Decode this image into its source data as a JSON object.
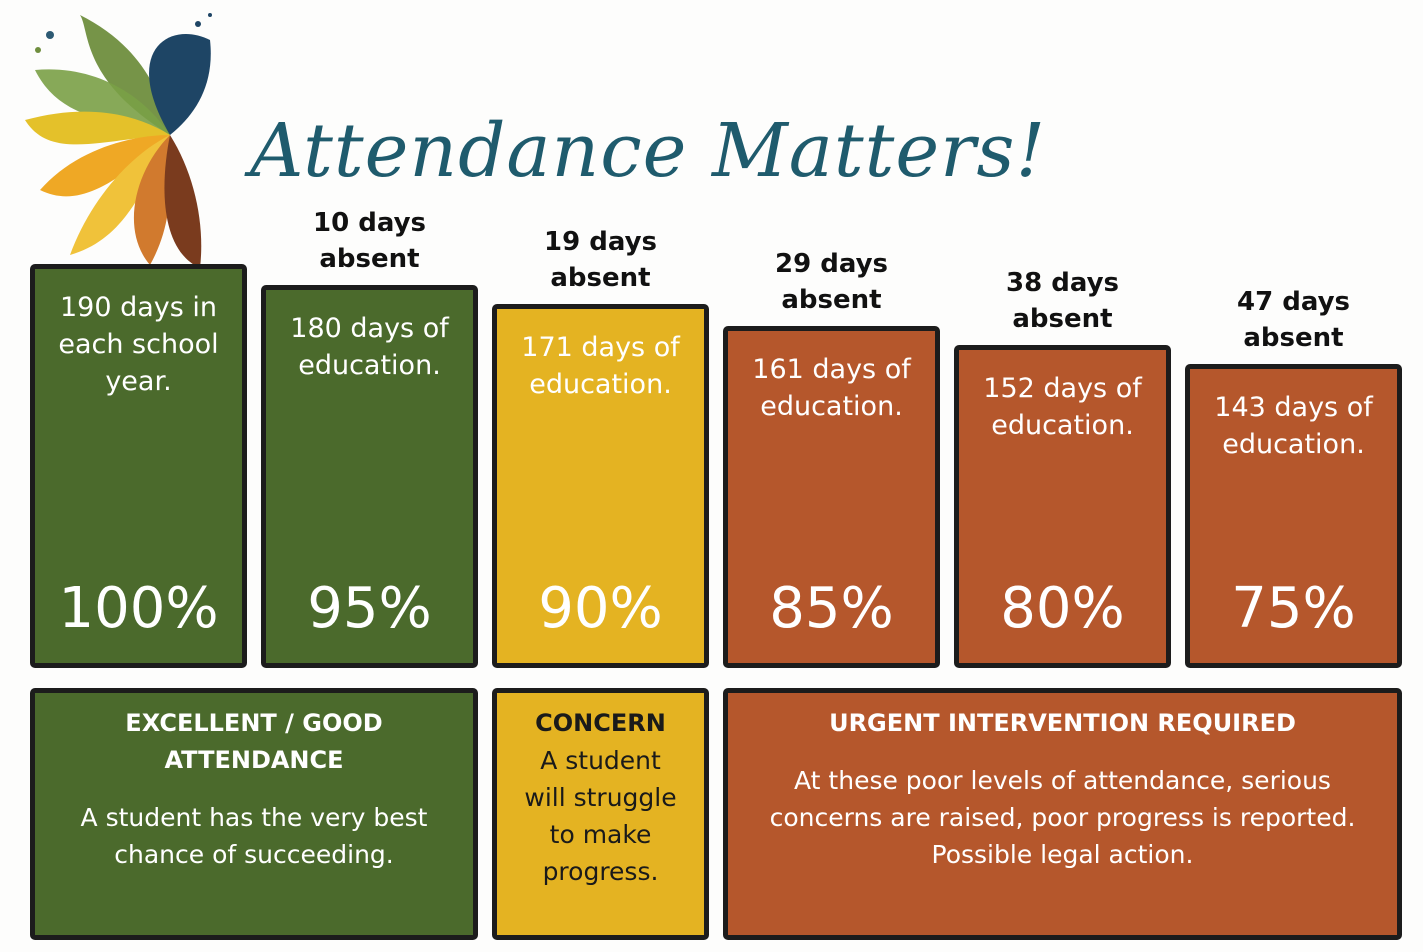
{
  "header": {
    "title": "Attendance Matters!"
  },
  "colors": {
    "green": "#4b6a2c",
    "yellow": "#e4b322",
    "rust": "#b5572c",
    "border": "#1c1c1c",
    "title": "#1f5b6d"
  },
  "chart_data": {
    "type": "bar",
    "title": "Attendance Matters!",
    "xlabel": "",
    "ylabel": "",
    "ylim": [
      0,
      190
    ],
    "categories": [
      "100%",
      "95%",
      "90%",
      "85%",
      "80%",
      "75%"
    ],
    "values": [
      190,
      180,
      171,
      161,
      152,
      143
    ],
    "bars": [
      {
        "days": 190,
        "percent": "100%",
        "desc": "190 days in\neach school\nyear.",
        "absent": "",
        "band": "green"
      },
      {
        "days": 180,
        "percent": "95%",
        "desc": "180 days of\neducation.",
        "absent": "10 days\nabsent",
        "band": "green"
      },
      {
        "days": 171,
        "percent": "90%",
        "desc": "171 days of\neducation.",
        "absent": "19 days\nabsent",
        "band": "yellow"
      },
      {
        "days": 161,
        "percent": "85%",
        "desc": "161 days of\neducation.",
        "absent": "29 days\nabsent",
        "band": "rust"
      },
      {
        "days": 152,
        "percent": "80%",
        "desc": "152 days of\neducation.",
        "absent": "38 days\nabsent",
        "band": "rust"
      },
      {
        "days": 143,
        "percent": "75%",
        "desc": "143 days of\neducation.",
        "absent": "47 days\nabsent",
        "band": "rust"
      }
    ]
  },
  "legend_boxes": [
    {
      "heading": "EXCELLENT / GOOD\nATTENDANCE",
      "body": "A student has the very best\nchance of succeeding.",
      "band": "green",
      "text_color": "#ffffff"
    },
    {
      "heading": "CONCERN",
      "body": "A student\nwill struggle\nto make\nprogress.",
      "band": "yellow",
      "text_color": "#1a1a1a"
    },
    {
      "heading": "URGENT INTERVENTION REQUIRED",
      "body": "At these poor levels of attendance, serious\nconcerns are raised, poor progress is reported.\nPossible legal action.",
      "band": "rust",
      "text_color": "#ffffff"
    }
  ]
}
